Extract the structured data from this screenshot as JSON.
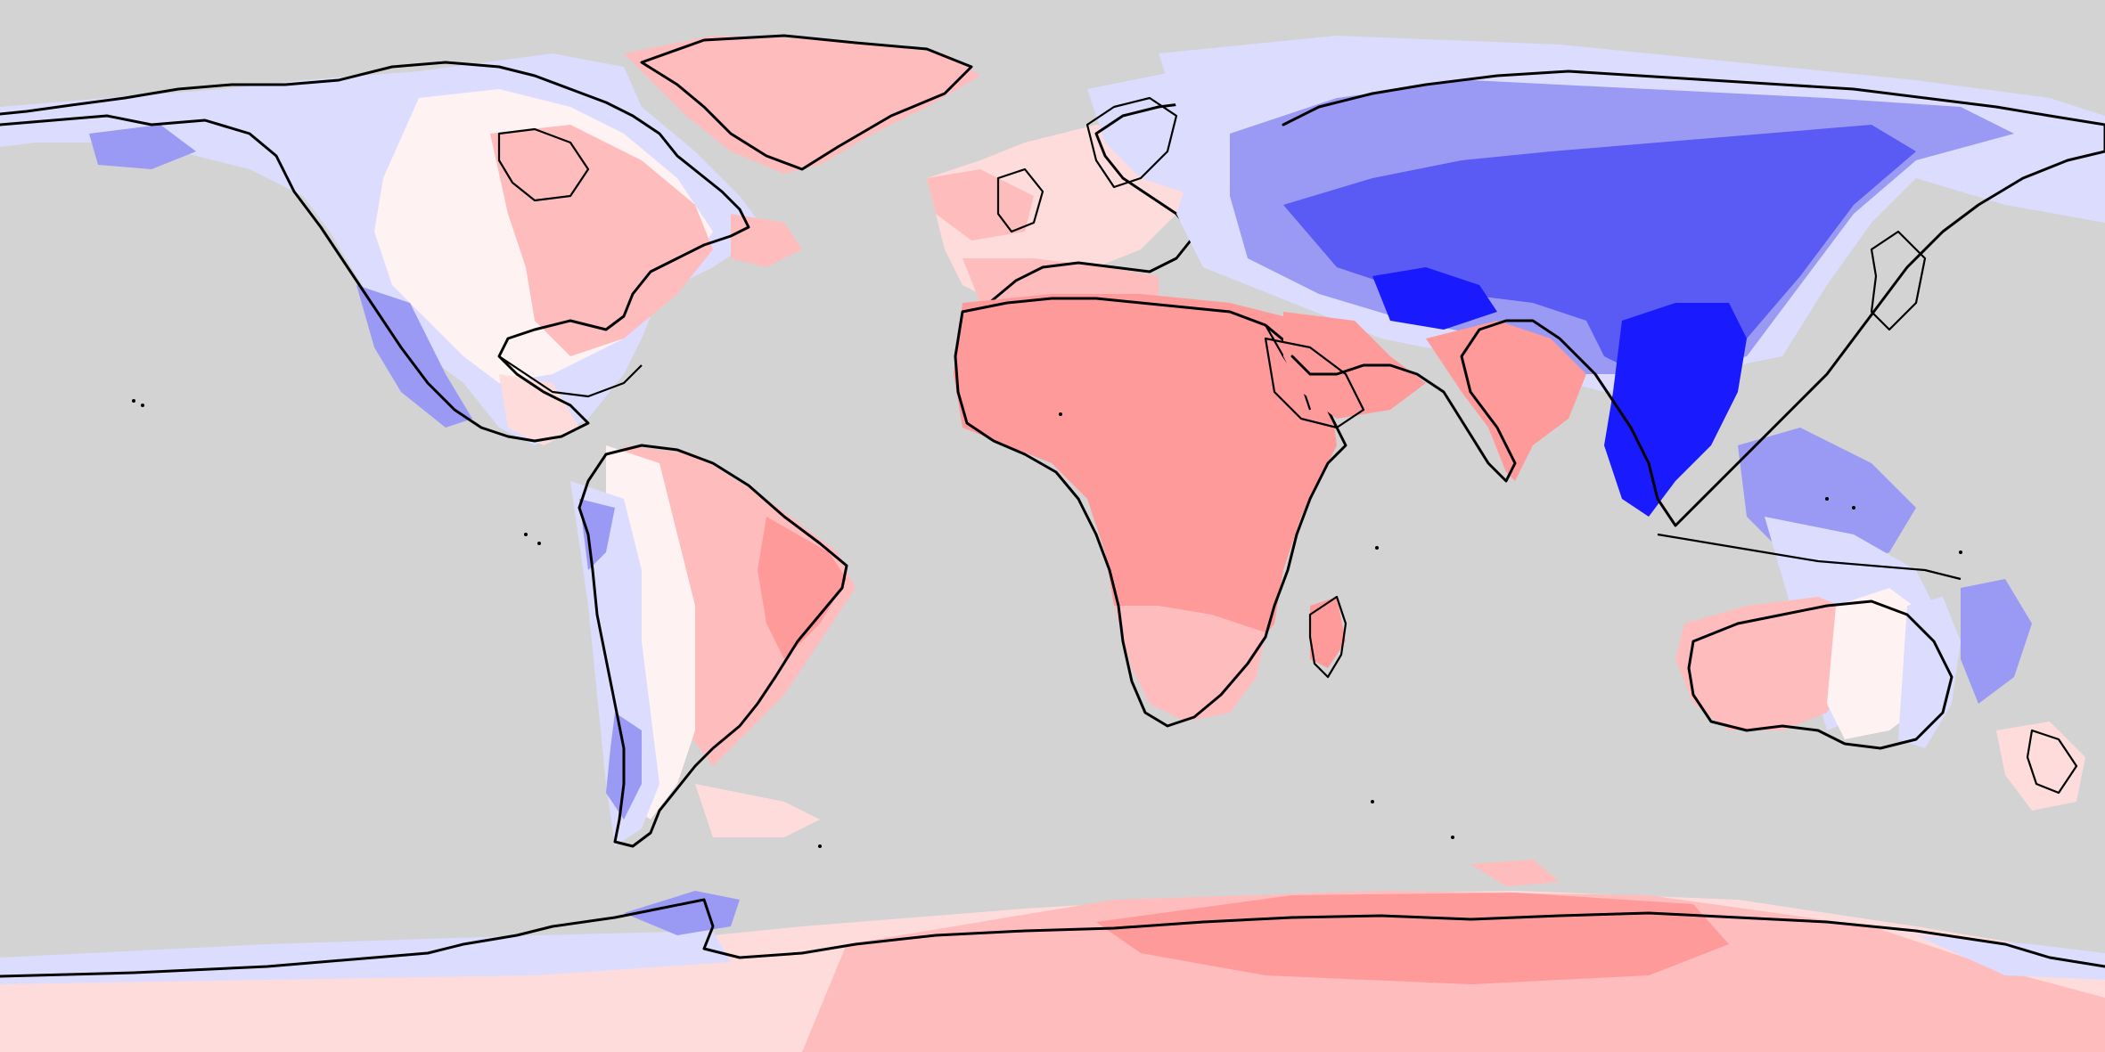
{
  "map": {
    "projection": "equirectangular",
    "background_color": "#d3d3d3",
    "coastline_color": "#000000",
    "palette": {
      "strong_neg": "#1a1aff",
      "mid_neg": "#5a5af5",
      "weak_neg": "#9a9af5",
      "faint_neg": "#dcdcff",
      "neutral": "#fff2f2",
      "faint_pos": "#ffdcdc",
      "weak_pos": "#ffbcbc",
      "mid_pos": "#ff9a9a"
    }
  }
}
